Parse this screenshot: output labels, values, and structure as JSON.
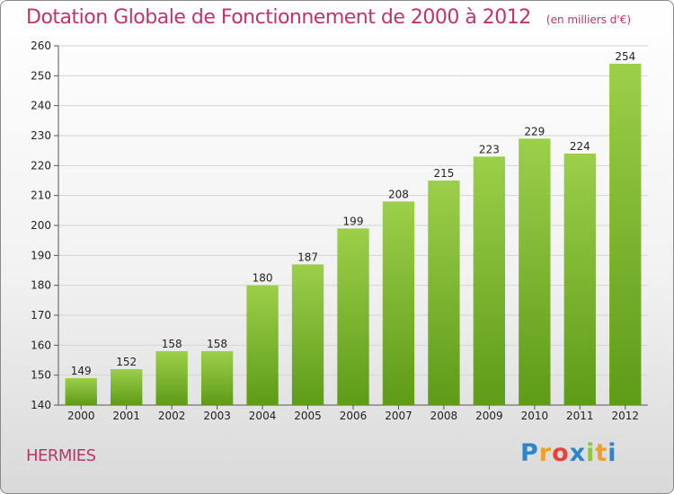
{
  "chart_data": {
    "type": "bar",
    "title": "Dotation Globale de Fonctionnement de 2000 à 2012",
    "unit": "(en milliers d'€)",
    "categories": [
      "2000",
      "2001",
      "2002",
      "2003",
      "2004",
      "2005",
      "2006",
      "2007",
      "2008",
      "2009",
      "2010",
      "2011",
      "2012"
    ],
    "values": [
      149,
      152,
      158,
      158,
      180,
      187,
      199,
      208,
      215,
      223,
      229,
      224,
      254
    ],
    "ylim": [
      140,
      260
    ],
    "yticks": [
      140,
      150,
      160,
      170,
      180,
      190,
      200,
      210,
      220,
      230,
      240,
      250,
      260
    ],
    "grid": true,
    "bar_color_top": "#9ccf4a",
    "bar_color_bottom": "#5e9b17"
  },
  "commune": "HERMIES",
  "logo": {
    "letters": [
      "P",
      "r",
      "o",
      "x",
      "i",
      "t",
      "i"
    ],
    "colors": [
      "#2e86c8",
      "#f0a02a",
      "#e8403a",
      "#2e86c8",
      "#8dc63f",
      "#f0a02a",
      "#2e86c8"
    ]
  }
}
